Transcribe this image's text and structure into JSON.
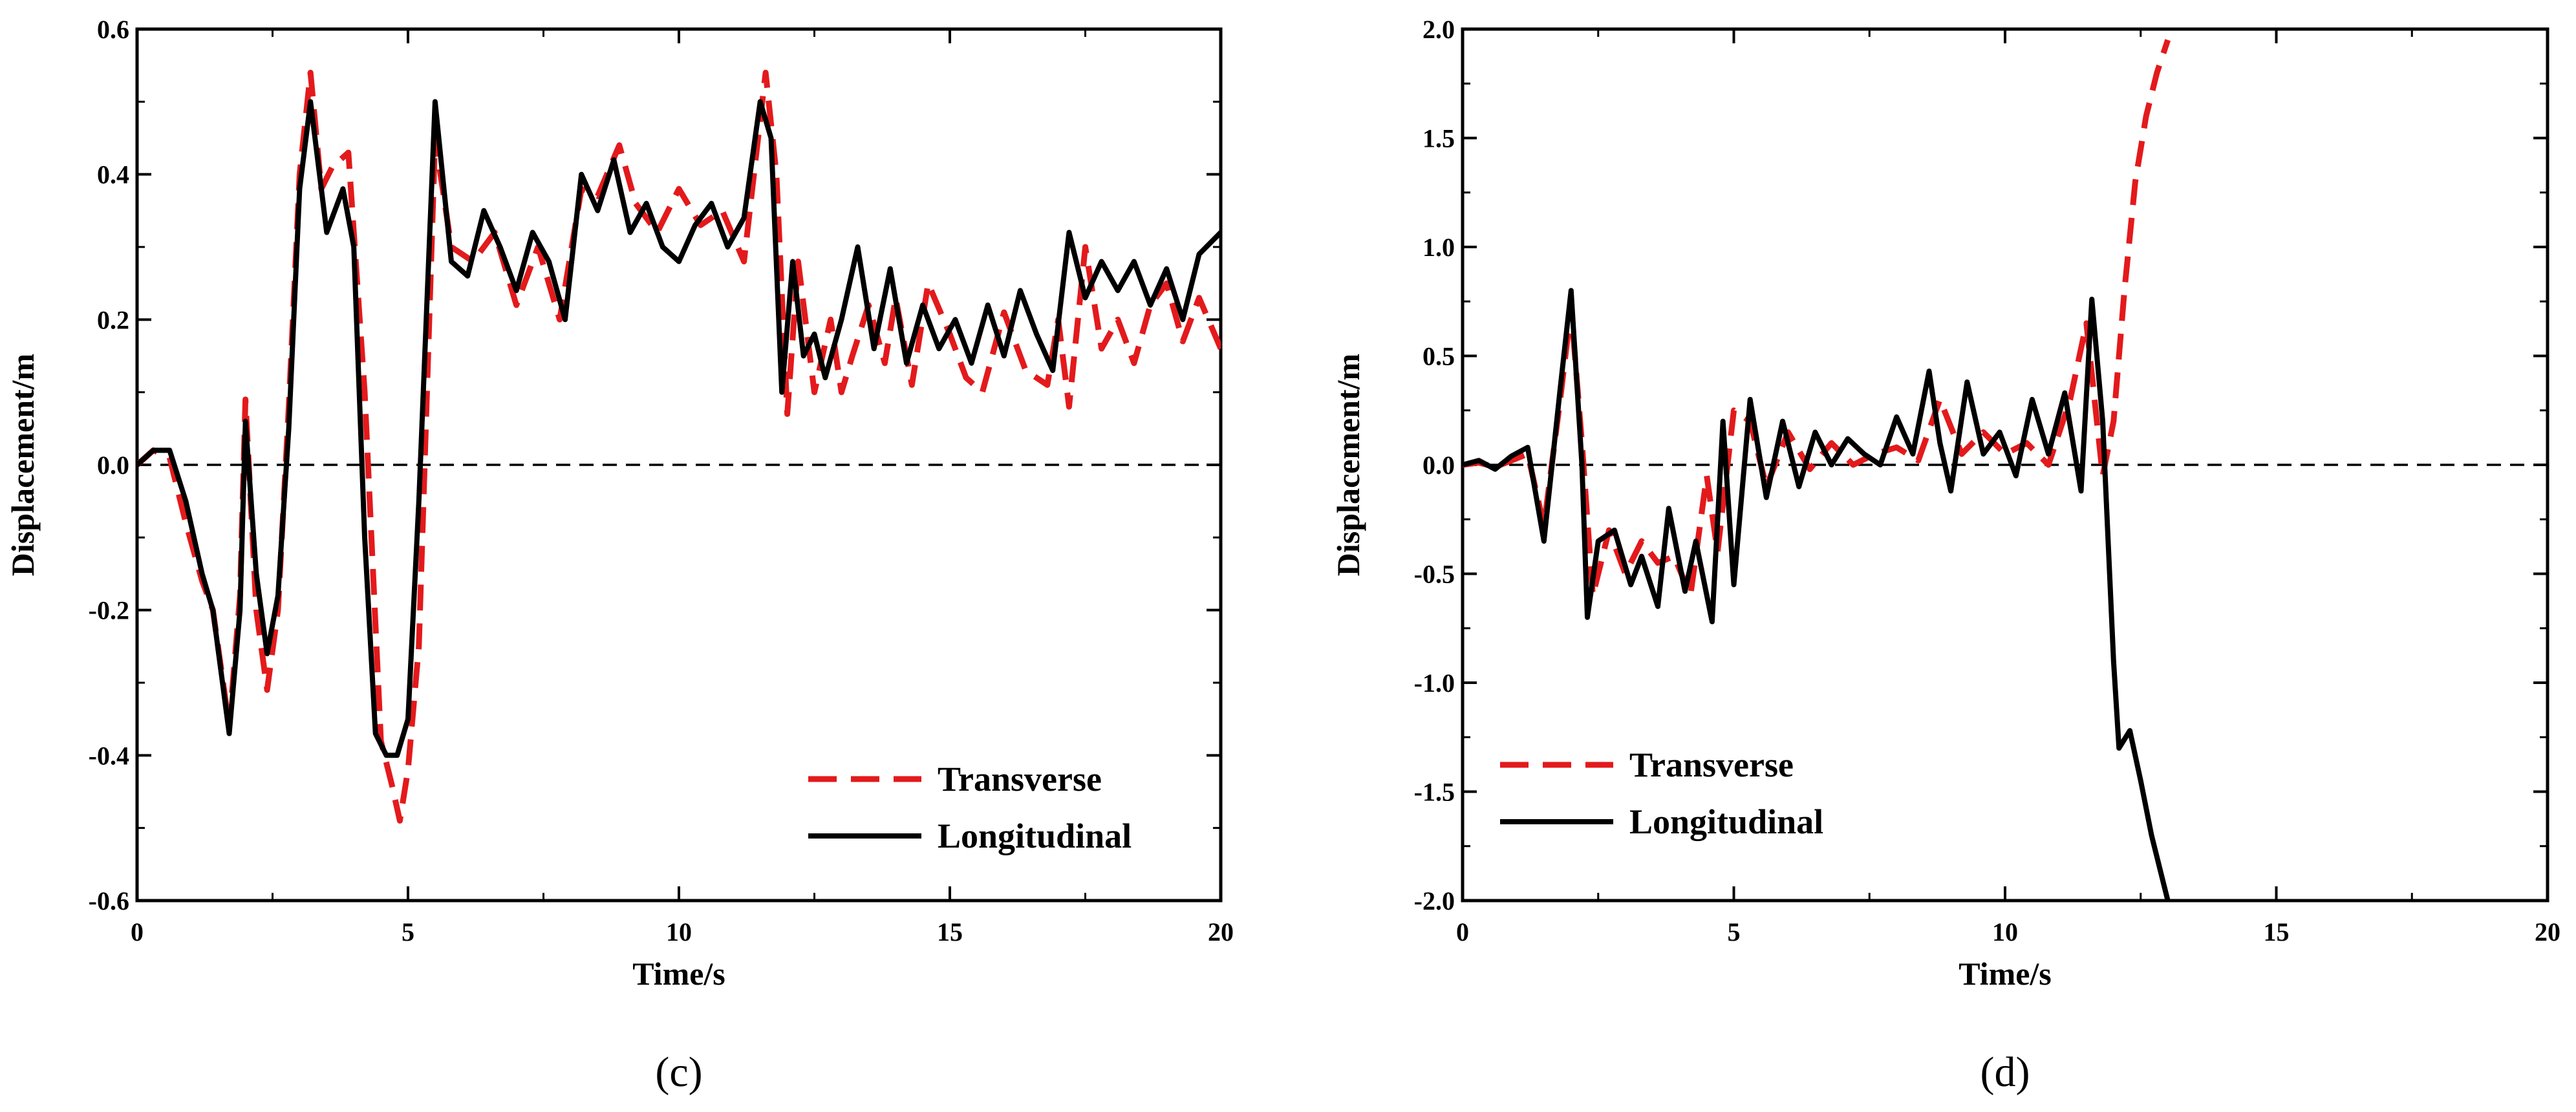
{
  "chart_data": [
    {
      "type": "line",
      "panel_label": "(c)",
      "xlabel": "Time/s",
      "ylabel": "Displacement/m",
      "xlim": [
        0,
        20
      ],
      "ylim": [
        -0.6,
        0.6
      ],
      "x_ticks": [
        "0",
        "5",
        "10",
        "15",
        "20"
      ],
      "y_ticks": [
        "-0.6",
        "-0.4",
        "-0.2",
        "0.0",
        "0.2",
        "0.4",
        "0.6"
      ],
      "reference_line": {
        "y": 0,
        "style": "dashed",
        "color": "#000000"
      },
      "legend": {
        "position": "bottom-right"
      },
      "series": [
        {
          "name": "Transverse",
          "style": "dashed",
          "color": "#e31a1c",
          "x": [
            0,
            0.3,
            0.6,
            0.9,
            1.2,
            1.4,
            1.7,
            1.9,
            2.0,
            2.2,
            2.4,
            2.6,
            2.8,
            3.0,
            3.2,
            3.4,
            3.6,
            3.9,
            4.2,
            4.5,
            4.7,
            4.85,
            5.0,
            5.2,
            5.5,
            5.8,
            6.2,
            6.6,
            7.0,
            7.4,
            7.8,
            8.2,
            8.5,
            8.9,
            9.2,
            9.6,
            10.0,
            10.4,
            10.8,
            11.2,
            11.6,
            11.8,
            12.0,
            12.2,
            12.5,
            12.8,
            13.0,
            13.2,
            13.5,
            13.8,
            14.0,
            14.3,
            14.6,
            15.0,
            15.3,
            15.6,
            16.0,
            16.4,
            16.8,
            17.0,
            17.2,
            17.5,
            17.8,
            18.1,
            18.4,
            18.7,
            19.0,
            19.3,
            19.6,
            20.0
          ],
          "y": [
            0.0,
            0.02,
            0.01,
            -0.08,
            -0.16,
            -0.2,
            -0.36,
            -0.18,
            0.09,
            -0.2,
            -0.31,
            -0.2,
            0.08,
            0.4,
            0.54,
            0.38,
            0.41,
            0.43,
            0.1,
            -0.38,
            -0.44,
            -0.49,
            -0.42,
            -0.25,
            0.45,
            0.3,
            0.28,
            0.32,
            0.22,
            0.3,
            0.2,
            0.38,
            0.37,
            0.44,
            0.36,
            0.32,
            0.38,
            0.33,
            0.35,
            0.28,
            0.54,
            0.4,
            0.07,
            0.28,
            0.1,
            0.2,
            0.1,
            0.15,
            0.22,
            0.14,
            0.23,
            0.11,
            0.25,
            0.18,
            0.12,
            0.1,
            0.21,
            0.13,
            0.11,
            0.2,
            0.08,
            0.3,
            0.16,
            0.2,
            0.14,
            0.22,
            0.25,
            0.17,
            0.23,
            0.16
          ]
        },
        {
          "name": "Longitudinal",
          "style": "solid",
          "color": "#000000",
          "x": [
            0,
            0.3,
            0.6,
            0.9,
            1.2,
            1.4,
            1.7,
            1.9,
            2.0,
            2.2,
            2.4,
            2.6,
            2.8,
            3.0,
            3.2,
            3.5,
            3.8,
            4.0,
            4.2,
            4.4,
            4.6,
            4.8,
            5.0,
            5.2,
            5.5,
            5.8,
            6.1,
            6.4,
            6.7,
            7.0,
            7.3,
            7.6,
            7.9,
            8.2,
            8.5,
            8.8,
            9.1,
            9.4,
            9.7,
            10.0,
            10.3,
            10.6,
            10.9,
            11.2,
            11.5,
            11.7,
            11.9,
            12.1,
            12.3,
            12.5,
            12.7,
            13.0,
            13.3,
            13.6,
            13.9,
            14.2,
            14.5,
            14.8,
            15.1,
            15.4,
            15.7,
            16.0,
            16.3,
            16.6,
            16.9,
            17.2,
            17.5,
            17.8,
            18.1,
            18.4,
            18.7,
            19.0,
            19.3,
            19.6,
            20.0
          ],
          "y": [
            0.0,
            0.02,
            0.02,
            -0.05,
            -0.15,
            -0.2,
            -0.37,
            -0.2,
            0.06,
            -0.15,
            -0.26,
            -0.18,
            0.05,
            0.38,
            0.5,
            0.32,
            0.38,
            0.3,
            -0.1,
            -0.37,
            -0.4,
            -0.4,
            -0.35,
            -0.05,
            0.5,
            0.28,
            0.26,
            0.35,
            0.3,
            0.24,
            0.32,
            0.28,
            0.2,
            0.4,
            0.35,
            0.42,
            0.32,
            0.36,
            0.3,
            0.28,
            0.33,
            0.36,
            0.3,
            0.34,
            0.5,
            0.45,
            0.1,
            0.28,
            0.15,
            0.18,
            0.12,
            0.2,
            0.3,
            0.16,
            0.27,
            0.14,
            0.22,
            0.16,
            0.2,
            0.14,
            0.22,
            0.15,
            0.24,
            0.18,
            0.13,
            0.32,
            0.23,
            0.28,
            0.24,
            0.28,
            0.22,
            0.27,
            0.2,
            0.29,
            0.32
          ]
        }
      ]
    },
    {
      "type": "line",
      "panel_label": "(d)",
      "xlabel": "Time/s",
      "ylabel": "Displacement/m",
      "xlim": [
        0,
        20
      ],
      "ylim": [
        -2.0,
        2.0
      ],
      "x_ticks": [
        "0",
        "5",
        "10",
        "15",
        "20"
      ],
      "y_ticks": [
        "-2.0",
        "-1.5",
        "-1.0",
        "-0.5",
        "0.0",
        "0.5",
        "1.0",
        "1.5",
        "2.0"
      ],
      "reference_line": {
        "y": 0,
        "style": "dashed",
        "color": "#000000"
      },
      "legend": {
        "position": "bottom-left"
      },
      "series": [
        {
          "name": "Transverse",
          "style": "dashed",
          "color": "#e31a1c",
          "x": [
            0,
            0.3,
            0.6,
            0.9,
            1.2,
            1.5,
            1.8,
            2.0,
            2.2,
            2.4,
            2.7,
            3.0,
            3.3,
            3.6,
            3.9,
            4.2,
            4.5,
            4.7,
            5.0,
            5.3,
            5.6,
            6.0,
            6.4,
            6.8,
            7.2,
            7.6,
            8.0,
            8.4,
            8.8,
            9.2,
            9.6,
            10.0,
            10.4,
            10.8,
            11.2,
            11.5,
            11.8,
            12.0,
            12.2,
            12.4,
            12.6,
            12.8,
            13.0
          ],
          "y": [
            0.0,
            0.01,
            -0.01,
            0.02,
            0.05,
            -0.28,
            0.3,
            0.72,
            0.1,
            -0.6,
            -0.3,
            -0.5,
            -0.35,
            -0.45,
            -0.42,
            -0.6,
            -0.05,
            -0.4,
            0.25,
            0.2,
            -0.1,
            0.15,
            -0.02,
            0.1,
            0.0,
            0.05,
            0.08,
            0.02,
            0.3,
            0.05,
            0.15,
            0.05,
            0.1,
            0.0,
            0.3,
            0.65,
            -0.05,
            0.2,
            0.8,
            1.3,
            1.6,
            1.8,
            1.95
          ]
        },
        {
          "name": "Longitudinal",
          "style": "solid",
          "color": "#000000",
          "x": [
            0,
            0.3,
            0.6,
            0.9,
            1.2,
            1.5,
            1.8,
            2.0,
            2.2,
            2.3,
            2.5,
            2.8,
            3.1,
            3.3,
            3.6,
            3.8,
            4.1,
            4.3,
            4.6,
            4.8,
            5.0,
            5.3,
            5.6,
            5.9,
            6.2,
            6.5,
            6.8,
            7.1,
            7.4,
            7.7,
            8.0,
            8.3,
            8.6,
            8.8,
            9.0,
            9.3,
            9.6,
            9.9,
            10.2,
            10.5,
            10.8,
            11.1,
            11.4,
            11.6,
            11.8,
            12.0,
            12.1,
            12.3,
            12.5,
            12.7,
            13.0
          ],
          "y": [
            0.0,
            0.02,
            -0.02,
            0.04,
            0.08,
            -0.35,
            0.35,
            0.8,
            0.0,
            -0.7,
            -0.35,
            -0.3,
            -0.55,
            -0.42,
            -0.65,
            -0.2,
            -0.58,
            -0.35,
            -0.72,
            0.2,
            -0.55,
            0.3,
            -0.15,
            0.2,
            -0.1,
            0.15,
            0.0,
            0.12,
            0.05,
            0.0,
            0.22,
            0.05,
            0.43,
            0.1,
            -0.12,
            0.38,
            0.05,
            0.15,
            -0.05,
            0.3,
            0.05,
            0.33,
            -0.12,
            0.76,
            0.2,
            -0.9,
            -1.3,
            -1.22,
            -1.45,
            -1.7,
            -2.0
          ]
        }
      ]
    }
  ]
}
